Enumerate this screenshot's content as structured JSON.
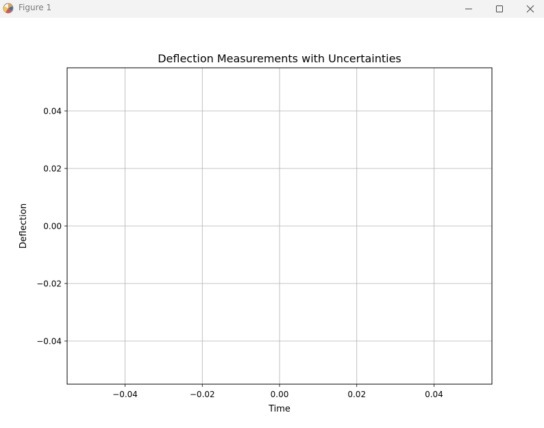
{
  "window": {
    "title": "Figure 1",
    "icons": {
      "app": "matplotlib-icon",
      "minimize": "minimize-icon",
      "maximize": "maximize-icon",
      "close": "close-icon"
    }
  },
  "colors": {
    "titlebar_bg": "#f3f3f3",
    "grid": "#b0b0b0",
    "axes": "#000000"
  },
  "chart_data": {
    "type": "scatter",
    "title": "Deflection Measurements with Uncertainties",
    "xlabel": "Time",
    "ylabel": "Deflection",
    "xlim": [
      -0.055,
      0.055
    ],
    "ylim": [
      -0.055,
      0.055
    ],
    "xticks": [
      -0.04,
      -0.02,
      0.0,
      0.02,
      0.04
    ],
    "yticks": [
      -0.04,
      -0.02,
      0.0,
      0.02,
      0.04
    ],
    "xtick_labels": [
      "−0.04",
      "−0.02",
      "0.00",
      "0.02",
      "0.04"
    ],
    "ytick_labels": [
      "−0.04",
      "−0.02",
      "0.00",
      "0.02",
      "0.04"
    ],
    "grid": true,
    "series": []
  }
}
